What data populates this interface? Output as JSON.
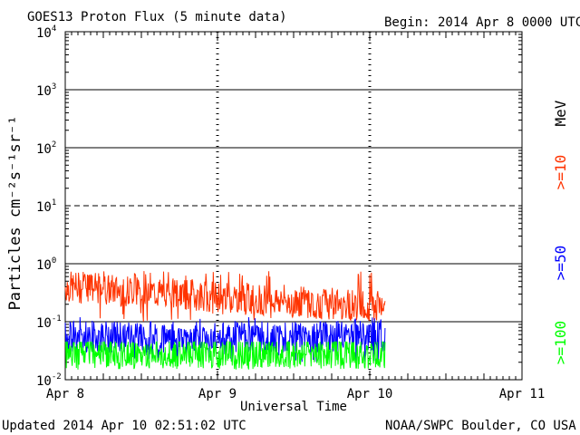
{
  "header": {
    "title": "GOES13 Proton Flux (5 minute data)",
    "begin": "Begin: 2014 Apr 8 0000 UTC"
  },
  "footer": {
    "updated": "Updated 2014 Apr 10 02:51:02 UTC",
    "credit": "NOAA/SWPC Boulder, CO USA"
  },
  "colors": {
    "ge10": "#ff3300",
    "ge50": "#0000ff",
    "ge100": "#00ff00"
  },
  "chart_data": {
    "type": "line",
    "title": "GOES13 Proton Flux (5 minute data)",
    "xlabel": "Universal Time",
    "ylabel": "Particles cm⁻²s⁻¹sr⁻¹",
    "yscale": "log",
    "ylim": [
      0.01,
      10000
    ],
    "xlim_days": [
      0,
      3
    ],
    "x_ticks": [
      "Apr 8",
      "Apr 9",
      "Apr 10",
      "Apr 11"
    ],
    "y_ticks": [
      {
        "base": "10",
        "exp": "-2",
        "value": 0.01
      },
      {
        "base": "10",
        "exp": "-1",
        "value": 0.1
      },
      {
        "base": "10",
        "exp": "0",
        "value": 1
      },
      {
        "base": "10",
        "exp": "1",
        "value": 10
      },
      {
        "base": "10",
        "exp": "2",
        "value": 100
      },
      {
        "base": "10",
        "exp": "3",
        "value": 1000
      },
      {
        "base": "10",
        "exp": "4",
        "value": 10000
      }
    ],
    "right_labels": {
      "unit": "MeV",
      "ge10": ">=10",
      "ge50": ">=50",
      "ge100": ">=100"
    },
    "data_end_day": 2.1,
    "series": [
      {
        "name": ">=10 MeV",
        "color": "#ff3300",
        "start": 0.4,
        "end": 0.18,
        "min": 0.1,
        "max": 0.75
      },
      {
        "name": ">=50 MeV",
        "color": "#0000ff",
        "start": 0.055,
        "end": 0.055,
        "min": 0.02,
        "max": 0.12
      },
      {
        "name": ">=100 MeV",
        "color": "#00ff00",
        "start": 0.028,
        "end": 0.028,
        "min": 0.015,
        "max": 0.045
      }
    ]
  }
}
